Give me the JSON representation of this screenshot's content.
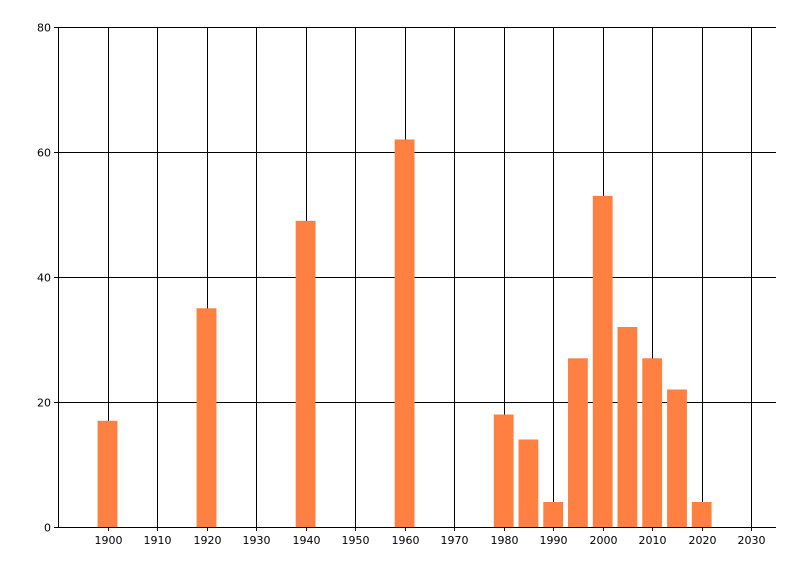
{
  "chart_data": {
    "type": "bar",
    "x": [
      1900,
      1920,
      1940,
      1960,
      1980,
      1985,
      1990,
      1995,
      2000,
      2005,
      2010,
      2015,
      2020
    ],
    "values": [
      17,
      35,
      49,
      62,
      18,
      14,
      4,
      27,
      53,
      32,
      27,
      22,
      4
    ],
    "title": "",
    "xlabel": "",
    "ylabel": "",
    "xlim": [
      1890,
      2035
    ],
    "ylim": [
      0,
      80
    ],
    "xticks": [
      1900,
      1910,
      1920,
      1930,
      1940,
      1950,
      1960,
      1970,
      1980,
      1990,
      2000,
      2010,
      2020,
      2030
    ],
    "yticks": [
      0,
      20,
      40,
      60,
      80
    ],
    "bar_width": 4,
    "grid": true,
    "legend": "none",
    "colors": {
      "bar": "#ff8040",
      "grid": "#000000",
      "axis": "#000000"
    }
  }
}
